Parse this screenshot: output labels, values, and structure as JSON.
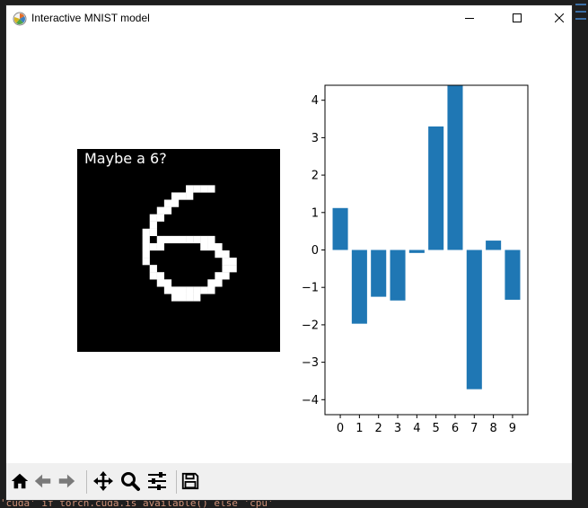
{
  "window": {
    "title": "Interactive MNIST model",
    "controls": [
      "minimize",
      "maximize",
      "close"
    ]
  },
  "image_panel": {
    "caption": "Maybe a 6?",
    "digit_pixels": [
      [
        15,
        5
      ],
      [
        16,
        5
      ],
      [
        17,
        5
      ],
      [
        18,
        5
      ],
      [
        13,
        6
      ],
      [
        14,
        6
      ],
      [
        15,
        6
      ],
      [
        12,
        7
      ],
      [
        13,
        7
      ],
      [
        11,
        8
      ],
      [
        12,
        8
      ],
      [
        10,
        9
      ],
      [
        11,
        9
      ],
      [
        10,
        10
      ],
      [
        9,
        11
      ],
      [
        10,
        11
      ],
      [
        9,
        12
      ],
      [
        11,
        12
      ],
      [
        12,
        12
      ],
      [
        13,
        12
      ],
      [
        14,
        12
      ],
      [
        15,
        12
      ],
      [
        16,
        12
      ],
      [
        17,
        12
      ],
      [
        18,
        12
      ],
      [
        9,
        13
      ],
      [
        10,
        13
      ],
      [
        11,
        13
      ],
      [
        17,
        13
      ],
      [
        18,
        13
      ],
      [
        19,
        13
      ],
      [
        9,
        14
      ],
      [
        19,
        14
      ],
      [
        20,
        14
      ],
      [
        9,
        15
      ],
      [
        20,
        15
      ],
      [
        21,
        15
      ],
      [
        10,
        16
      ],
      [
        20,
        16
      ],
      [
        21,
        16
      ],
      [
        10,
        17
      ],
      [
        11,
        17
      ],
      [
        19,
        17
      ],
      [
        20,
        17
      ],
      [
        11,
        18
      ],
      [
        12,
        18
      ],
      [
        18,
        18
      ],
      [
        19,
        18
      ],
      [
        12,
        19
      ],
      [
        13,
        19
      ],
      [
        14,
        19
      ],
      [
        15,
        19
      ],
      [
        16,
        19
      ],
      [
        17,
        19
      ],
      [
        18,
        19
      ],
      [
        13,
        20
      ],
      [
        14,
        20
      ],
      [
        15,
        20
      ],
      [
        16,
        20
      ]
    ]
  },
  "chart_data": {
    "type": "bar",
    "categories": [
      "0",
      "1",
      "2",
      "3",
      "4",
      "5",
      "6",
      "7",
      "8",
      "9"
    ],
    "values": [
      1.12,
      -1.97,
      -1.25,
      -1.35,
      -0.08,
      3.3,
      4.4,
      -3.72,
      0.25,
      -1.33
    ],
    "ylim": [
      -4.4,
      4.4
    ],
    "yticks": [
      -4,
      -3,
      -2,
      -1,
      0,
      1,
      2,
      3,
      4
    ],
    "ytick_labels": [
      "−4",
      "−3",
      "−2",
      "−1",
      "0",
      "1",
      "2",
      "3",
      "4"
    ],
    "bar_color": "#1f77b4",
    "grid": false
  },
  "toolbar": {
    "items": [
      "home-icon",
      "back-icon",
      "forward-icon",
      "pan-icon",
      "zoom-icon",
      "configure-subplots-icon",
      "save-icon"
    ]
  },
  "background": {
    "bottom_code": "'cuda' if torch.cuda.is_available() else 'cpu'"
  }
}
